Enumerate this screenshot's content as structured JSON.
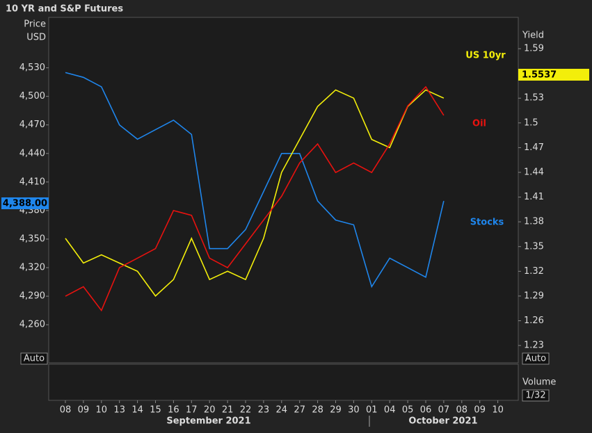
{
  "chart_data": {
    "type": "line",
    "title": "10 YR and S&P Futures",
    "ylabel": [
      "Price",
      "USD"
    ],
    "y2label": "Yield",
    "categories": [
      "08",
      "09",
      "10",
      "13",
      "14",
      "15",
      "16",
      "17",
      "20",
      "21",
      "22",
      "23",
      "24",
      "27",
      "28",
      "29",
      "30",
      "01",
      "04",
      "05",
      "06",
      "07",
      "08",
      "09",
      "10"
    ],
    "months": [
      "September 2021",
      "October 2021"
    ],
    "ylim": [
      4220,
      4583
    ],
    "yticks": [
      {
        "value": 4260,
        "label": "4,260"
      },
      {
        "value": 4290,
        "label": "4,290"
      },
      {
        "value": 4320,
        "label": "4,320"
      },
      {
        "value": 4350,
        "label": "4,350"
      },
      {
        "value": 4380,
        "label": "4,380"
      },
      {
        "value": 4410,
        "label": "4,410"
      },
      {
        "value": 4440,
        "label": "4,440"
      },
      {
        "value": 4470,
        "label": "4,470"
      },
      {
        "value": 4500,
        "label": "4,500"
      },
      {
        "value": 4530,
        "label": "4,530"
      }
    ],
    "y2lim": [
      1.209,
      1.628
    ],
    "y2ticks": [
      1.23,
      1.26,
      1.29,
      1.32,
      1.35,
      1.38,
      1.41,
      1.44,
      1.47,
      1.5,
      1.53,
      1.59
    ],
    "series": [
      {
        "name": "Stocks",
        "color": "#1f86ec",
        "axis": "y",
        "values": [
          4525,
          4520,
          4510,
          4470,
          4455,
          4465,
          4475,
          4460,
          4340,
          4340,
          4360,
          4400,
          4440,
          4440,
          4390,
          4370,
          4365,
          4300,
          4330,
          4320,
          4310,
          4390,
          null,
          null,
          null
        ]
      },
      {
        "name": "US 10yr",
        "color": "#f3ee0a",
        "axis": "y2",
        "values": [
          1.36,
          1.33,
          1.34,
          1.33,
          1.32,
          1.29,
          1.31,
          1.36,
          1.31,
          1.32,
          1.31,
          1.36,
          1.44,
          1.48,
          1.52,
          1.54,
          1.53,
          1.48,
          1.47,
          1.52,
          1.54,
          1.53,
          null,
          null,
          null
        ]
      },
      {
        "name": "Oil",
        "color": "#e8120f",
        "axis": "y",
        "values": [
          4290,
          4300,
          4275,
          4320,
          4330,
          4340,
          4380,
          4375,
          4330,
          4320,
          4345,
          4370,
          4395,
          4430,
          4450,
          4420,
          4430,
          4420,
          4450,
          4490,
          4510,
          4480,
          null,
          null,
          null
        ]
      }
    ],
    "last_labels": {
      "price": "4,388.00",
      "yield": "1.5537"
    },
    "auto": [
      "Auto",
      "Auto"
    ],
    "volume_label": "Volume",
    "volume_scale": "1/32"
  }
}
